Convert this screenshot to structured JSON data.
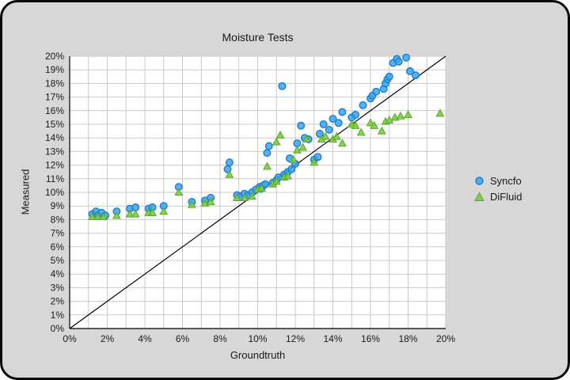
{
  "colors": {
    "card_background": "#d7d7d7",
    "card_border": "#0a0a0a",
    "plot_background": "#ffffff",
    "grid": "#c9c9c9",
    "axis": "#000000",
    "text": "#1a1a1a",
    "syncfo_fill": "#3fa3ea",
    "syncfo_edge": "#1780cf",
    "difluid_fill": "#7ccb43",
    "difluid_edge": "#58a82a"
  },
  "chart_data": {
    "type": "scatter",
    "title": "Moisture Tests",
    "xlabel": "Groundtruth",
    "ylabel": "Measured",
    "xlim": [
      0,
      20
    ],
    "ylim": [
      0,
      20
    ],
    "x_tick_step": 2,
    "y_tick_step": 1,
    "x_ticks": [
      "0%",
      "2%",
      "4%",
      "6%",
      "8%",
      "10%",
      "12%",
      "14%",
      "16%",
      "18%",
      "20%"
    ],
    "y_ticks": [
      "0%",
      "1%",
      "2%",
      "3%",
      "4%",
      "5%",
      "6%",
      "7%",
      "8%",
      "9%",
      "10%",
      "11%",
      "12%",
      "13%",
      "14%",
      "15%",
      "16%",
      "17%",
      "18%",
      "19%",
      "20%"
    ],
    "grid": true,
    "grid_step": 1,
    "legend_position": "right",
    "reference_line": {
      "from": [
        0,
        0
      ],
      "to": [
        20,
        20
      ],
      "color": "#000000"
    },
    "series": [
      {
        "name": "Syncfo",
        "marker": "circle",
        "color": "#3fa3ea",
        "edge_color": "#1780cf",
        "points": [
          [
            1.2,
            8.4
          ],
          [
            1.4,
            8.6
          ],
          [
            1.5,
            8.3
          ],
          [
            1.7,
            8.5
          ],
          [
            1.9,
            8.3
          ],
          [
            2.5,
            8.6
          ],
          [
            3.2,
            8.8
          ],
          [
            3.5,
            8.9
          ],
          [
            4.2,
            8.8
          ],
          [
            4.4,
            8.9
          ],
          [
            5.0,
            9.0
          ],
          [
            5.8,
            10.4
          ],
          [
            6.5,
            9.3
          ],
          [
            7.2,
            9.4
          ],
          [
            7.5,
            9.6
          ],
          [
            8.4,
            11.7
          ],
          [
            8.5,
            12.2
          ],
          [
            8.9,
            9.8
          ],
          [
            9.1,
            9.7
          ],
          [
            9.3,
            9.9
          ],
          [
            9.5,
            9.8
          ],
          [
            9.7,
            10.0
          ],
          [
            9.9,
            10.2
          ],
          [
            10.1,
            10.4
          ],
          [
            10.2,
            10.3
          ],
          [
            10.3,
            10.5
          ],
          [
            10.4,
            10.6
          ],
          [
            10.5,
            12.9
          ],
          [
            10.6,
            13.4
          ],
          [
            10.8,
            10.7
          ],
          [
            11.0,
            10.9
          ],
          [
            11.1,
            11.1
          ],
          [
            11.3,
            17.8
          ],
          [
            11.4,
            11.3
          ],
          [
            11.6,
            11.5
          ],
          [
            11.8,
            11.7
          ],
          [
            11.7,
            12.5
          ],
          [
            12.0,
            12.1
          ],
          [
            12.1,
            13.6
          ],
          [
            12.3,
            14.9
          ],
          [
            12.5,
            14.0
          ],
          [
            12.7,
            13.9
          ],
          [
            13.0,
            12.4
          ],
          [
            13.2,
            12.6
          ],
          [
            13.3,
            14.3
          ],
          [
            13.5,
            15.0
          ],
          [
            13.8,
            14.6
          ],
          [
            14.0,
            15.4
          ],
          [
            14.3,
            15.1
          ],
          [
            14.5,
            15.9
          ],
          [
            15.0,
            15.5
          ],
          [
            15.2,
            15.7
          ],
          [
            15.6,
            16.4
          ],
          [
            16.0,
            16.9
          ],
          [
            16.1,
            17.1
          ],
          [
            16.3,
            17.4
          ],
          [
            16.7,
            17.6
          ],
          [
            16.8,
            18.0
          ],
          [
            16.9,
            18.3
          ],
          [
            17.0,
            18.5
          ],
          [
            17.2,
            19.5
          ],
          [
            17.4,
            19.8
          ],
          [
            17.5,
            19.6
          ],
          [
            17.9,
            19.9
          ],
          [
            18.1,
            18.9
          ],
          [
            18.4,
            18.6
          ]
        ]
      },
      {
        "name": "DiFluid",
        "marker": "triangle",
        "color": "#7ccb43",
        "edge_color": "#58a82a",
        "points": [
          [
            1.2,
            8.2
          ],
          [
            1.5,
            8.2
          ],
          [
            1.8,
            8.2
          ],
          [
            2.5,
            8.3
          ],
          [
            3.2,
            8.4
          ],
          [
            3.5,
            8.4
          ],
          [
            4.2,
            8.5
          ],
          [
            4.4,
            8.5
          ],
          [
            5.0,
            8.6
          ],
          [
            5.8,
            10.0
          ],
          [
            6.5,
            9.1
          ],
          [
            7.2,
            9.2
          ],
          [
            7.5,
            9.3
          ],
          [
            8.5,
            11.3
          ],
          [
            8.9,
            9.6
          ],
          [
            9.3,
            9.6
          ],
          [
            9.7,
            9.7
          ],
          [
            10.0,
            10.2
          ],
          [
            10.2,
            10.3
          ],
          [
            10.5,
            11.9
          ],
          [
            10.8,
            10.6
          ],
          [
            11.0,
            10.8
          ],
          [
            11.0,
            13.7
          ],
          [
            11.2,
            14.2
          ],
          [
            11.4,
            11.1
          ],
          [
            11.6,
            11.2
          ],
          [
            11.9,
            12.4
          ],
          [
            12.1,
            13.1
          ],
          [
            12.4,
            13.3
          ],
          [
            12.6,
            13.9
          ],
          [
            13.0,
            12.2
          ],
          [
            13.4,
            13.9
          ],
          [
            13.6,
            14.1
          ],
          [
            14.0,
            13.9
          ],
          [
            14.2,
            14.1
          ],
          [
            14.5,
            13.6
          ],
          [
            15.0,
            15.0
          ],
          [
            15.2,
            14.9
          ],
          [
            15.5,
            14.4
          ],
          [
            16.0,
            15.1
          ],
          [
            16.2,
            14.9
          ],
          [
            16.6,
            14.5
          ],
          [
            16.8,
            15.2
          ],
          [
            17.0,
            15.3
          ],
          [
            17.3,
            15.5
          ],
          [
            17.6,
            15.6
          ],
          [
            18.0,
            15.7
          ],
          [
            19.7,
            15.8
          ]
        ]
      }
    ]
  }
}
